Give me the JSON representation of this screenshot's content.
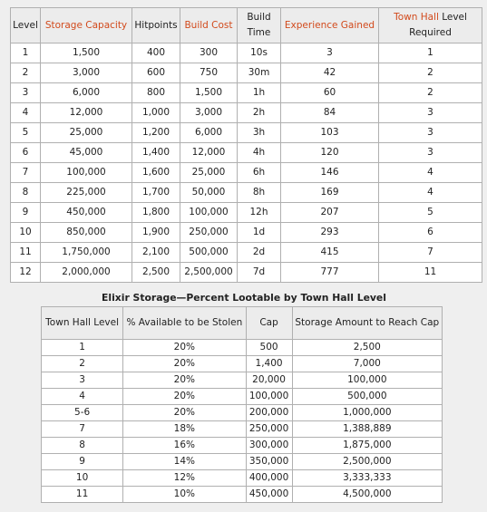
{
  "main_table": {
    "headers": {
      "level": "Level",
      "storage": "Storage Capacity",
      "hitpoints": "Hitpoints",
      "build_cost": "Build Cost",
      "build_time": "Build Time",
      "experience": "Experience Gained",
      "town_hall_word": "Town Hall",
      "level_required": " Level Required"
    },
    "rows": [
      [
        "1",
        "1,500",
        "400",
        "300",
        "10s",
        "3",
        "1"
      ],
      [
        "2",
        "3,000",
        "600",
        "750",
        "30m",
        "42",
        "2"
      ],
      [
        "3",
        "6,000",
        "800",
        "1,500",
        "1h",
        "60",
        "2"
      ],
      [
        "4",
        "12,000",
        "1,000",
        "3,000",
        "2h",
        "84",
        "3"
      ],
      [
        "5",
        "25,000",
        "1,200",
        "6,000",
        "3h",
        "103",
        "3"
      ],
      [
        "6",
        "45,000",
        "1,400",
        "12,000",
        "4h",
        "120",
        "3"
      ],
      [
        "7",
        "100,000",
        "1,600",
        "25,000",
        "6h",
        "146",
        "4"
      ],
      [
        "8",
        "225,000",
        "1,700",
        "50,000",
        "8h",
        "169",
        "4"
      ],
      [
        "9",
        "450,000",
        "1,800",
        "100,000",
        "12h",
        "207",
        "5"
      ],
      [
        "10",
        "850,000",
        "1,900",
        "250,000",
        "1d",
        "293",
        "6"
      ],
      [
        "11",
        "1,750,000",
        "2,100",
        "500,000",
        "2d",
        "415",
        "7"
      ],
      [
        "12",
        "2,000,000",
        "2,500",
        "2,500,000",
        "7d",
        "777",
        "11"
      ]
    ]
  },
  "elixir_caption": "Elixir Storage—Percent Lootable by Town Hall Level",
  "elixir_table": {
    "headers": {
      "town_hall_level": "Town Hall Level",
      "percent_stolen": "% Available to be Stolen",
      "cap": "Cap",
      "amount_to_reach_cap": "Storage Amount to Reach Cap"
    },
    "rows": [
      [
        "1",
        "20%",
        "500",
        "2,500"
      ],
      [
        "2",
        "20%",
        "1,400",
        "7,000"
      ],
      [
        "3",
        "20%",
        "20,000",
        "100,000"
      ],
      [
        "4",
        "20%",
        "100,000",
        "500,000"
      ],
      [
        "5-6",
        "20%",
        "200,000",
        "1,000,000"
      ],
      [
        "7",
        "18%",
        "250,000",
        "1,388,889"
      ],
      [
        "8",
        "16%",
        "300,000",
        "1,875,000"
      ],
      [
        "9",
        "14%",
        "350,000",
        "2,500,000"
      ],
      [
        "10",
        "12%",
        "400,000",
        "3,333,333"
      ],
      [
        "11",
        "10%",
        "450,000",
        "4,500,000"
      ]
    ]
  },
  "accent_color": "#d24a1c"
}
